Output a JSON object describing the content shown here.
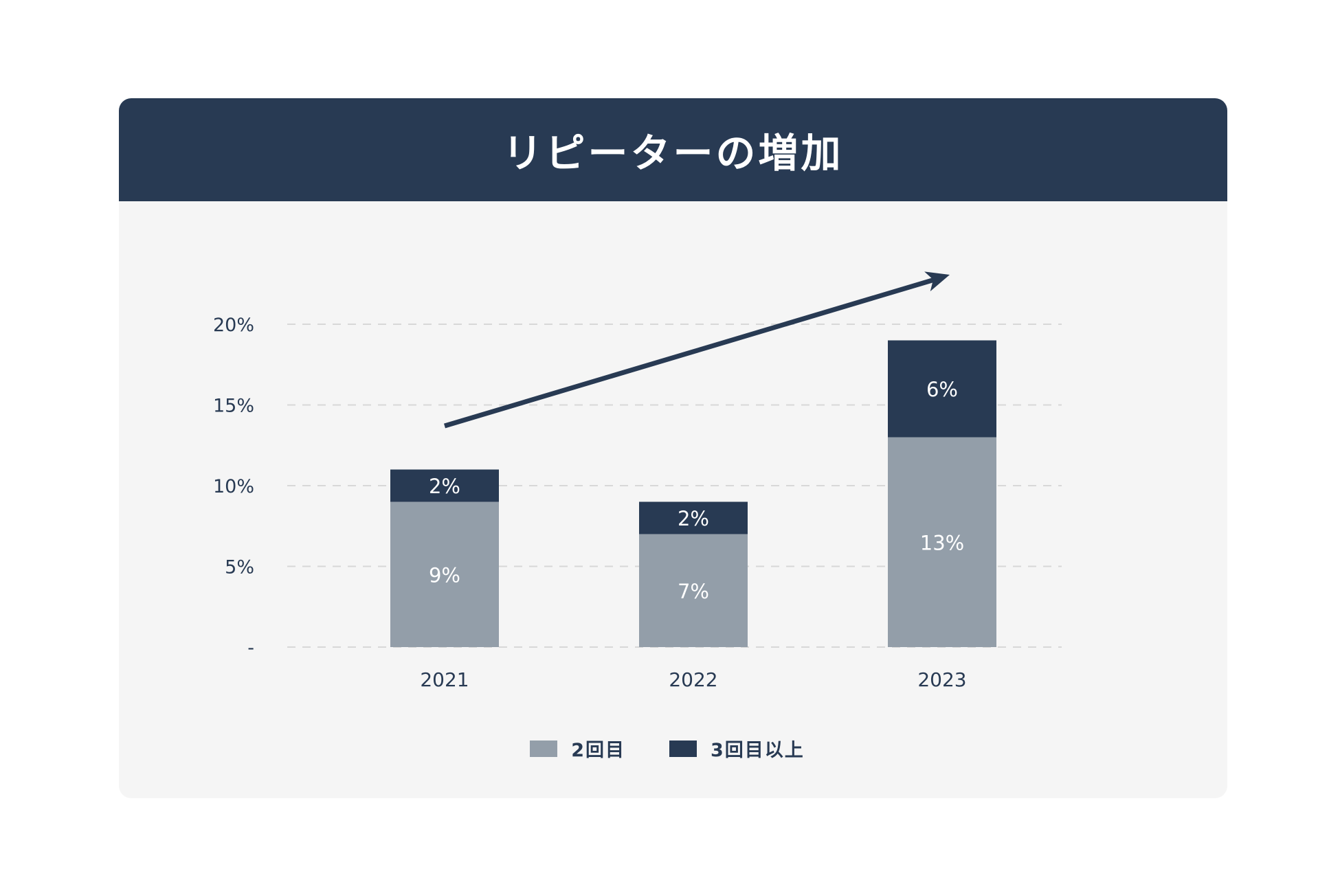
{
  "colors": {
    "header": "#283a53",
    "panel": "#f5f5f5",
    "series_second": "#939ea9",
    "series_third": "#283a53",
    "grid": "#d8d8d8",
    "text": "#283a53"
  },
  "chart_data": {
    "type": "bar",
    "stacked": true,
    "title": "リピーターの増加",
    "categories": [
      "2021",
      "2022",
      "2023"
    ],
    "series": [
      {
        "name": "2回目",
        "values": [
          9,
          7,
          13
        ],
        "labels": [
          "9%",
          "7%",
          "13%"
        ]
      },
      {
        "name": "3回目以上",
        "values": [
          2,
          2,
          6
        ],
        "labels": [
          "2%",
          "2%",
          "6%"
        ]
      }
    ],
    "yticks": [
      0,
      5,
      10,
      15,
      20
    ],
    "ytick_labels": [
      "-",
      "5%",
      "10%",
      "15%",
      "20%"
    ],
    "ylim": [
      0,
      20
    ],
    "grid": true,
    "legend": "bottom-center",
    "annotation": "upward-trend-arrow"
  }
}
